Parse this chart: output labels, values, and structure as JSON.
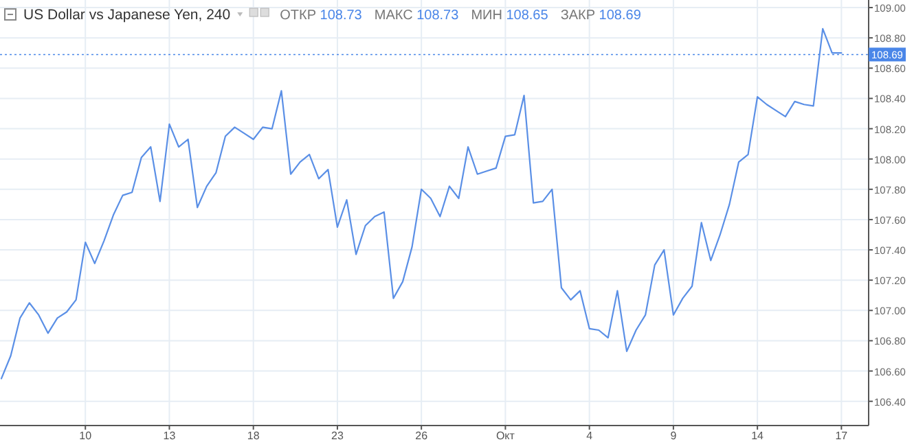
{
  "chart_data": {
    "type": "line",
    "title": "US Dollar vs Japanese Yen, 240",
    "annotations": [
      "ОТКР 108.73",
      "МАКС 108.73",
      "МИН 108.65",
      "ЗАКР 108.69"
    ],
    "categories": [
      null,
      null,
      null,
      null,
      null,
      null,
      null,
      null,
      null,
      "10",
      null,
      null,
      null,
      null,
      null,
      null,
      null,
      null,
      "13",
      null,
      null,
      null,
      null,
      null,
      null,
      null,
      null,
      "18",
      null,
      null,
      null,
      null,
      null,
      null,
      null,
      null,
      "23",
      null,
      null,
      null,
      null,
      null,
      null,
      null,
      null,
      "26",
      null,
      null,
      null,
      null,
      null,
      null,
      null,
      null,
      "Окт",
      null,
      null,
      null,
      null,
      null,
      null,
      null,
      null,
      "4",
      null,
      null,
      null,
      null,
      null,
      null,
      null,
      null,
      "9",
      null,
      null,
      null,
      null,
      null,
      null,
      null,
      null,
      "14",
      null,
      null,
      null,
      null,
      null,
      null,
      null,
      null,
      "17"
    ],
    "ylim": [
      106.24,
      109.05
    ],
    "yticks": [
      {
        "value": 106.4,
        "label": "106.40"
      },
      {
        "value": 106.6,
        "label": "106.60"
      },
      {
        "value": 106.8,
        "label": "106.80"
      },
      {
        "value": 107,
        "label": "107.00"
      },
      {
        "value": 107.2,
        "label": "107.20"
      },
      {
        "value": 107.4,
        "label": "107.40"
      },
      {
        "value": 107.6,
        "label": "107.60"
      },
      {
        "value": 107.8,
        "label": "107.80"
      },
      {
        "value": 108,
        "label": "108.00"
      },
      {
        "value": 108.2,
        "label": "108.20"
      },
      {
        "value": 108.4,
        "label": "108.40"
      },
      {
        "value": 108.6,
        "label": "108.60"
      },
      {
        "value": 108.8,
        "label": "108.80"
      },
      {
        "value": 109,
        "label": "109.00"
      }
    ],
    "grid": true,
    "marker": "none",
    "line_style": "solid",
    "ref_lines": [
      {
        "axis": "y",
        "value": 108.69,
        "label": "108.69",
        "color": "#4a86e8",
        "line_style": "dotted"
      }
    ],
    "series": [
      {
        "color": "#5a8fe6",
        "values": [
          106.55,
          106.7,
          106.95,
          107.05,
          106.97,
          106.85,
          106.95,
          106.99,
          107.07,
          107.45,
          107.31,
          107.46,
          107.63,
          107.76,
          107.78,
          108.01,
          108.08,
          107.72,
          108.23,
          108.08,
          108.13,
          107.68,
          107.82,
          107.91,
          108.15,
          108.21,
          108.17,
          108.13,
          108.21,
          108.2,
          108.45,
          107.9,
          107.98,
          108.03,
          107.87,
          107.93,
          107.55,
          107.73,
          107.37,
          107.56,
          107.62,
          107.65,
          107.08,
          107.19,
          107.42,
          107.8,
          107.74,
          107.62,
          107.82,
          107.74,
          108.08,
          107.9,
          107.92,
          107.94,
          108.15,
          108.16,
          108.42,
          107.71,
          107.72,
          107.8,
          107.15,
          107.07,
          107.13,
          106.88,
          106.87,
          106.82,
          107.13,
          106.73,
          106.87,
          106.97,
          107.3,
          107.4,
          106.97,
          107.08,
          107.16,
          107.58,
          107.33,
          107.5,
          107.7,
          107.98,
          108.03,
          108.41,
          108.36,
          108.32,
          108.28,
          108.38,
          108.36,
          108.35,
          108.86,
          108.7,
          108.7
        ]
      }
    ]
  }
}
